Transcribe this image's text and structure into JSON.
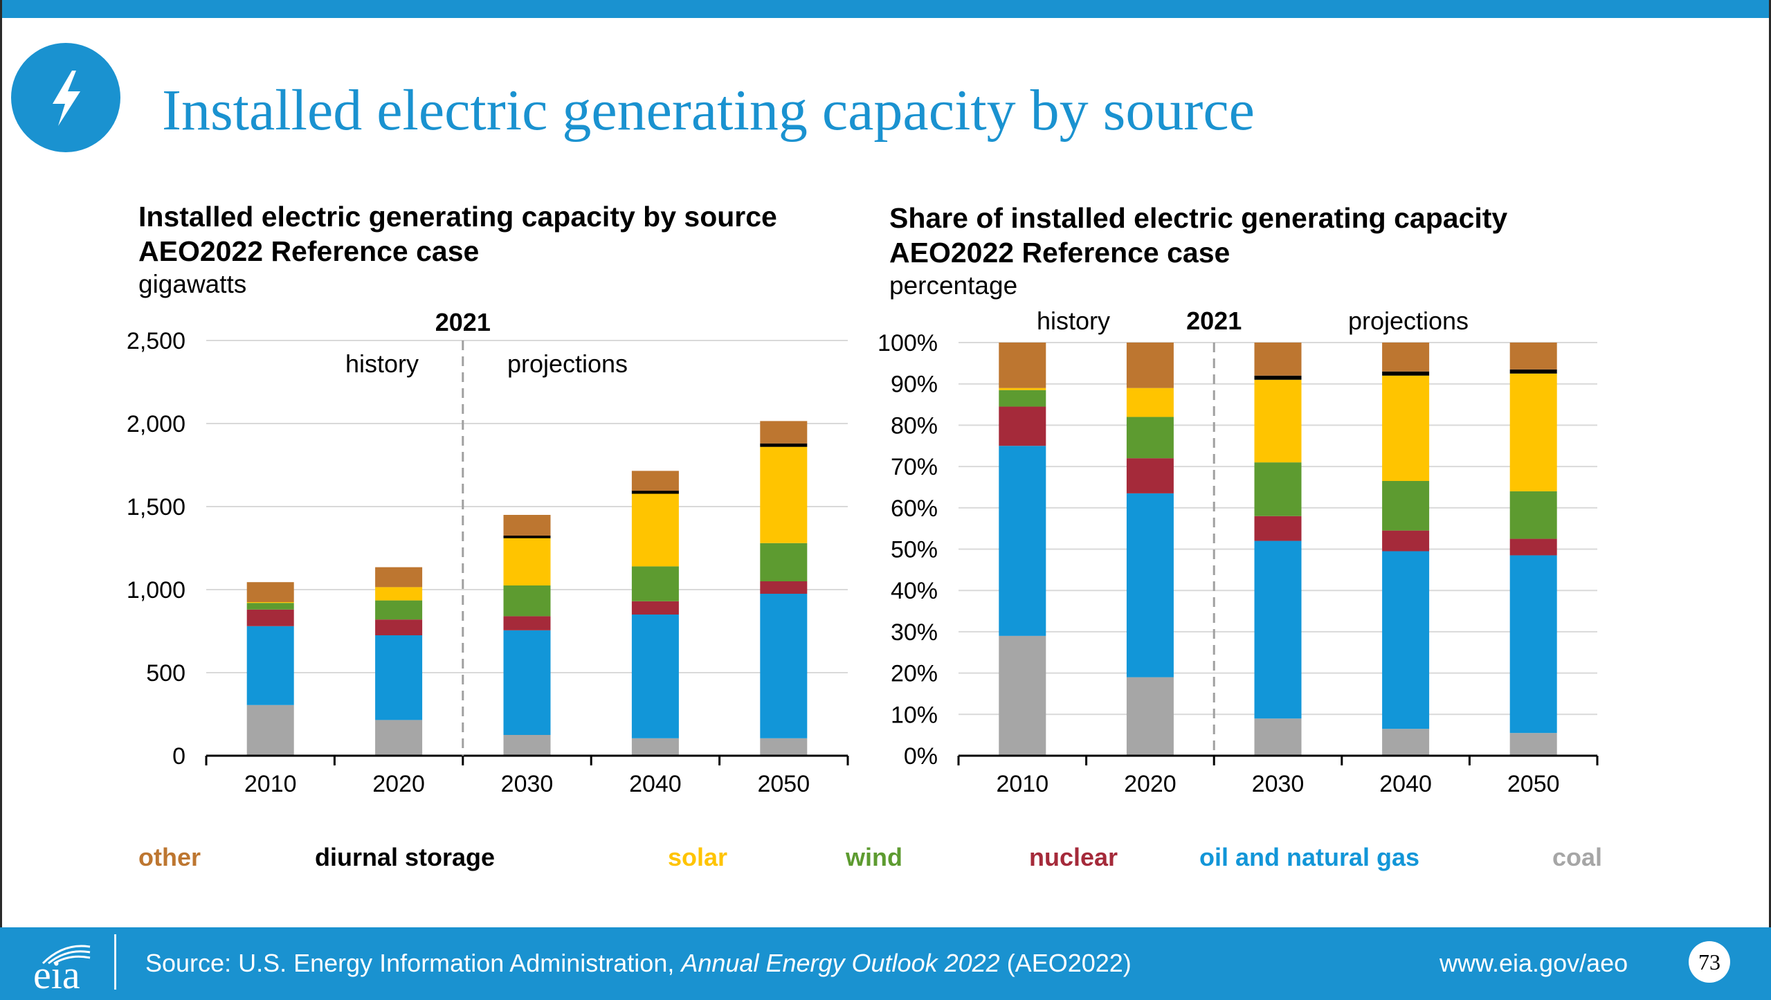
{
  "slide": {
    "title": "Installed electric generating capacity by source",
    "page_number": "73"
  },
  "footer": {
    "logo_text": "eia",
    "source_prefix": "Source: U.S. Energy Information Administration, ",
    "source_italic": "Annual Energy Outlook 2022",
    "source_suffix": " (AEO2022)",
    "url": "www.eia.gov/aeo"
  },
  "colors": {
    "brand_blue": "#1a92d0",
    "coal": "#a6a6a6",
    "oil_and_natural_gas": "#1296d8",
    "nuclear": "#a52a3a",
    "wind": "#5d9b30",
    "solar": "#ffc400",
    "diurnal_storage": "#000000",
    "other": "#bd7630"
  },
  "legend": [
    {
      "key": "other",
      "label": "other",
      "color": "#bd7630"
    },
    {
      "key": "diurnal_storage",
      "label": "diurnal storage",
      "color": "#000000"
    },
    {
      "key": "solar",
      "label": "solar",
      "color": "#ffc400"
    },
    {
      "key": "wind",
      "label": "wind",
      "color": "#5d9b30"
    },
    {
      "key": "nuclear",
      "label": "nuclear",
      "color": "#a52a3a"
    },
    {
      "key": "oil_and_natural_gas",
      "label": "oil and natural gas",
      "color": "#1296d8"
    },
    {
      "key": "coal",
      "label": "coal",
      "color": "#a6a6a6"
    }
  ],
  "chart_data": [
    {
      "type": "bar",
      "stacked": true,
      "title": "Installed electric generating capacity by source",
      "subtitle": "AEO2022 Reference case",
      "ylabel": "gigawatts",
      "divider_label": "2021",
      "history_label": "history",
      "projections_label": "projections",
      "categories": [
        "2010",
        "2020",
        "2030",
        "2040",
        "2050"
      ],
      "ylim": [
        0,
        2500
      ],
      "yticks": [
        0,
        500,
        1000,
        1500,
        2000,
        2500
      ],
      "ytick_labels": [
        "0",
        "500",
        "1,000",
        "1,500",
        "2,000",
        "2,500"
      ],
      "grid": true,
      "series": [
        {
          "name": "coal",
          "values": [
            305,
            215,
            125,
            105,
            105
          ]
        },
        {
          "name": "oil and natural gas",
          "values": [
            475,
            510,
            630,
            745,
            870
          ]
        },
        {
          "name": "nuclear",
          "values": [
            100,
            95,
            85,
            80,
            75
          ]
        },
        {
          "name": "wind",
          "values": [
            40,
            115,
            185,
            210,
            230
          ]
        },
        {
          "name": "solar",
          "values": [
            5,
            80,
            290,
            440,
            580
          ]
        },
        {
          "name": "diurnal storage",
          "values": [
            0,
            0,
            10,
            15,
            20
          ]
        },
        {
          "name": "other",
          "values": [
            120,
            120,
            125,
            120,
            135
          ]
        }
      ]
    },
    {
      "type": "bar",
      "stacked": true,
      "title": "Share of installed electric generating capacity",
      "subtitle": "AEO2022 Reference case",
      "ylabel": "percentage",
      "divider_label": "2021",
      "history_label": "history",
      "projections_label": "projections",
      "categories": [
        "2010",
        "2020",
        "2030",
        "2040",
        "2050"
      ],
      "ylim": [
        0,
        100
      ],
      "yticks": [
        0,
        10,
        20,
        30,
        40,
        50,
        60,
        70,
        80,
        90,
        100
      ],
      "ytick_labels": [
        "0%",
        "10%",
        "20%",
        "30%",
        "40%",
        "50%",
        "60%",
        "70%",
        "80%",
        "90%",
        "100%"
      ],
      "grid": true,
      "series": [
        {
          "name": "coal",
          "values": [
            29,
            19,
            9,
            6.5,
            5.5
          ]
        },
        {
          "name": "oil and natural gas",
          "values": [
            46,
            44.5,
            43,
            43,
            43
          ]
        },
        {
          "name": "nuclear",
          "values": [
            9.5,
            8.5,
            6,
            5,
            4
          ]
        },
        {
          "name": "wind",
          "values": [
            4,
            10,
            13,
            12,
            11.5
          ]
        },
        {
          "name": "solar",
          "values": [
            0.5,
            7,
            20,
            25.5,
            28.5
          ]
        },
        {
          "name": "diurnal storage",
          "values": [
            0,
            0,
            1,
            1,
            1
          ]
        },
        {
          "name": "other",
          "values": [
            11,
            11,
            8,
            7,
            6.5
          ]
        }
      ]
    }
  ]
}
